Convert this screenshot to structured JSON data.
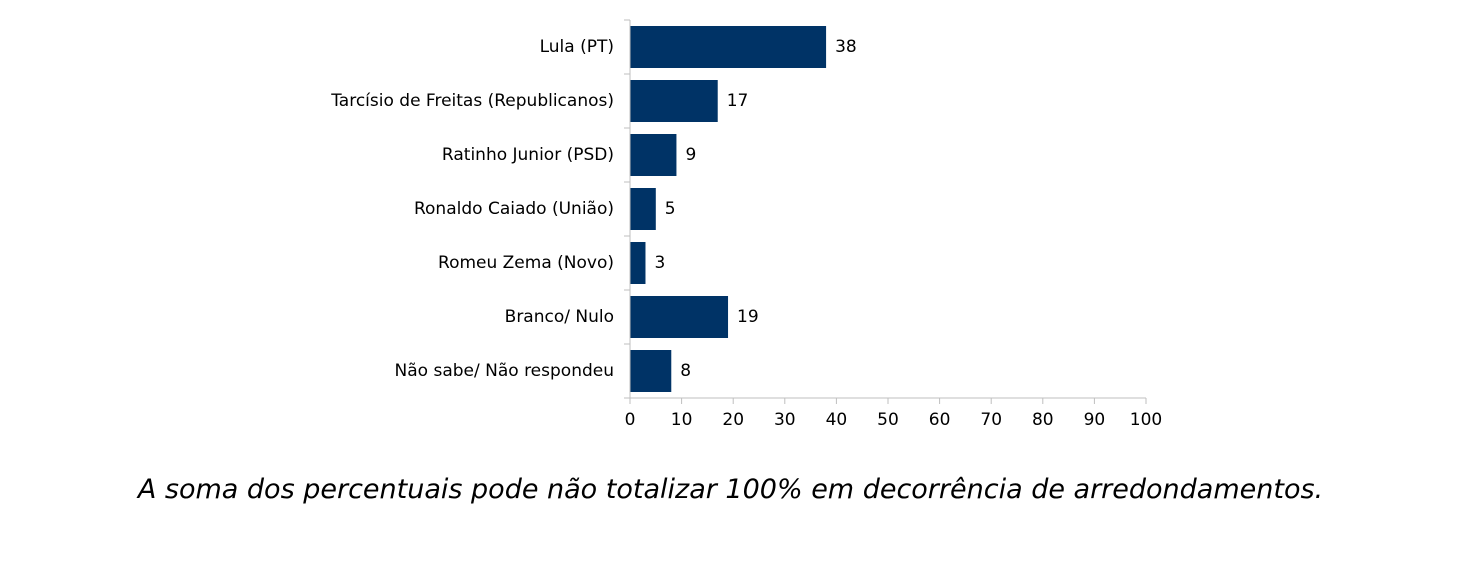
{
  "chart_data": {
    "type": "bar",
    "orientation": "horizontal",
    "categories": [
      "Lula (PT)",
      "Tarcísio de Freitas (Republicanos)",
      "Ratinho Junior (PSD)",
      "Ronaldo Caiado (União)",
      "Romeu Zema (Novo)",
      "Branco/ Nulo",
      "Não sabe/ Não respondeu"
    ],
    "values": [
      38,
      17,
      9,
      5,
      3,
      19,
      8
    ],
    "data_labels": [
      "38",
      "17",
      "9",
      "5",
      "3",
      "19",
      "8"
    ],
    "xlim": [
      0,
      100
    ],
    "x_ticks": [
      "0",
      "10",
      "20",
      "30",
      "40",
      "50",
      "60",
      "70",
      "80",
      "90",
      "100"
    ],
    "grid": false,
    "legend": "none",
    "bar_color": "#003366"
  },
  "footnote": "A soma dos percentuais pode não totalizar 100% em decorrência de arredondamentos."
}
